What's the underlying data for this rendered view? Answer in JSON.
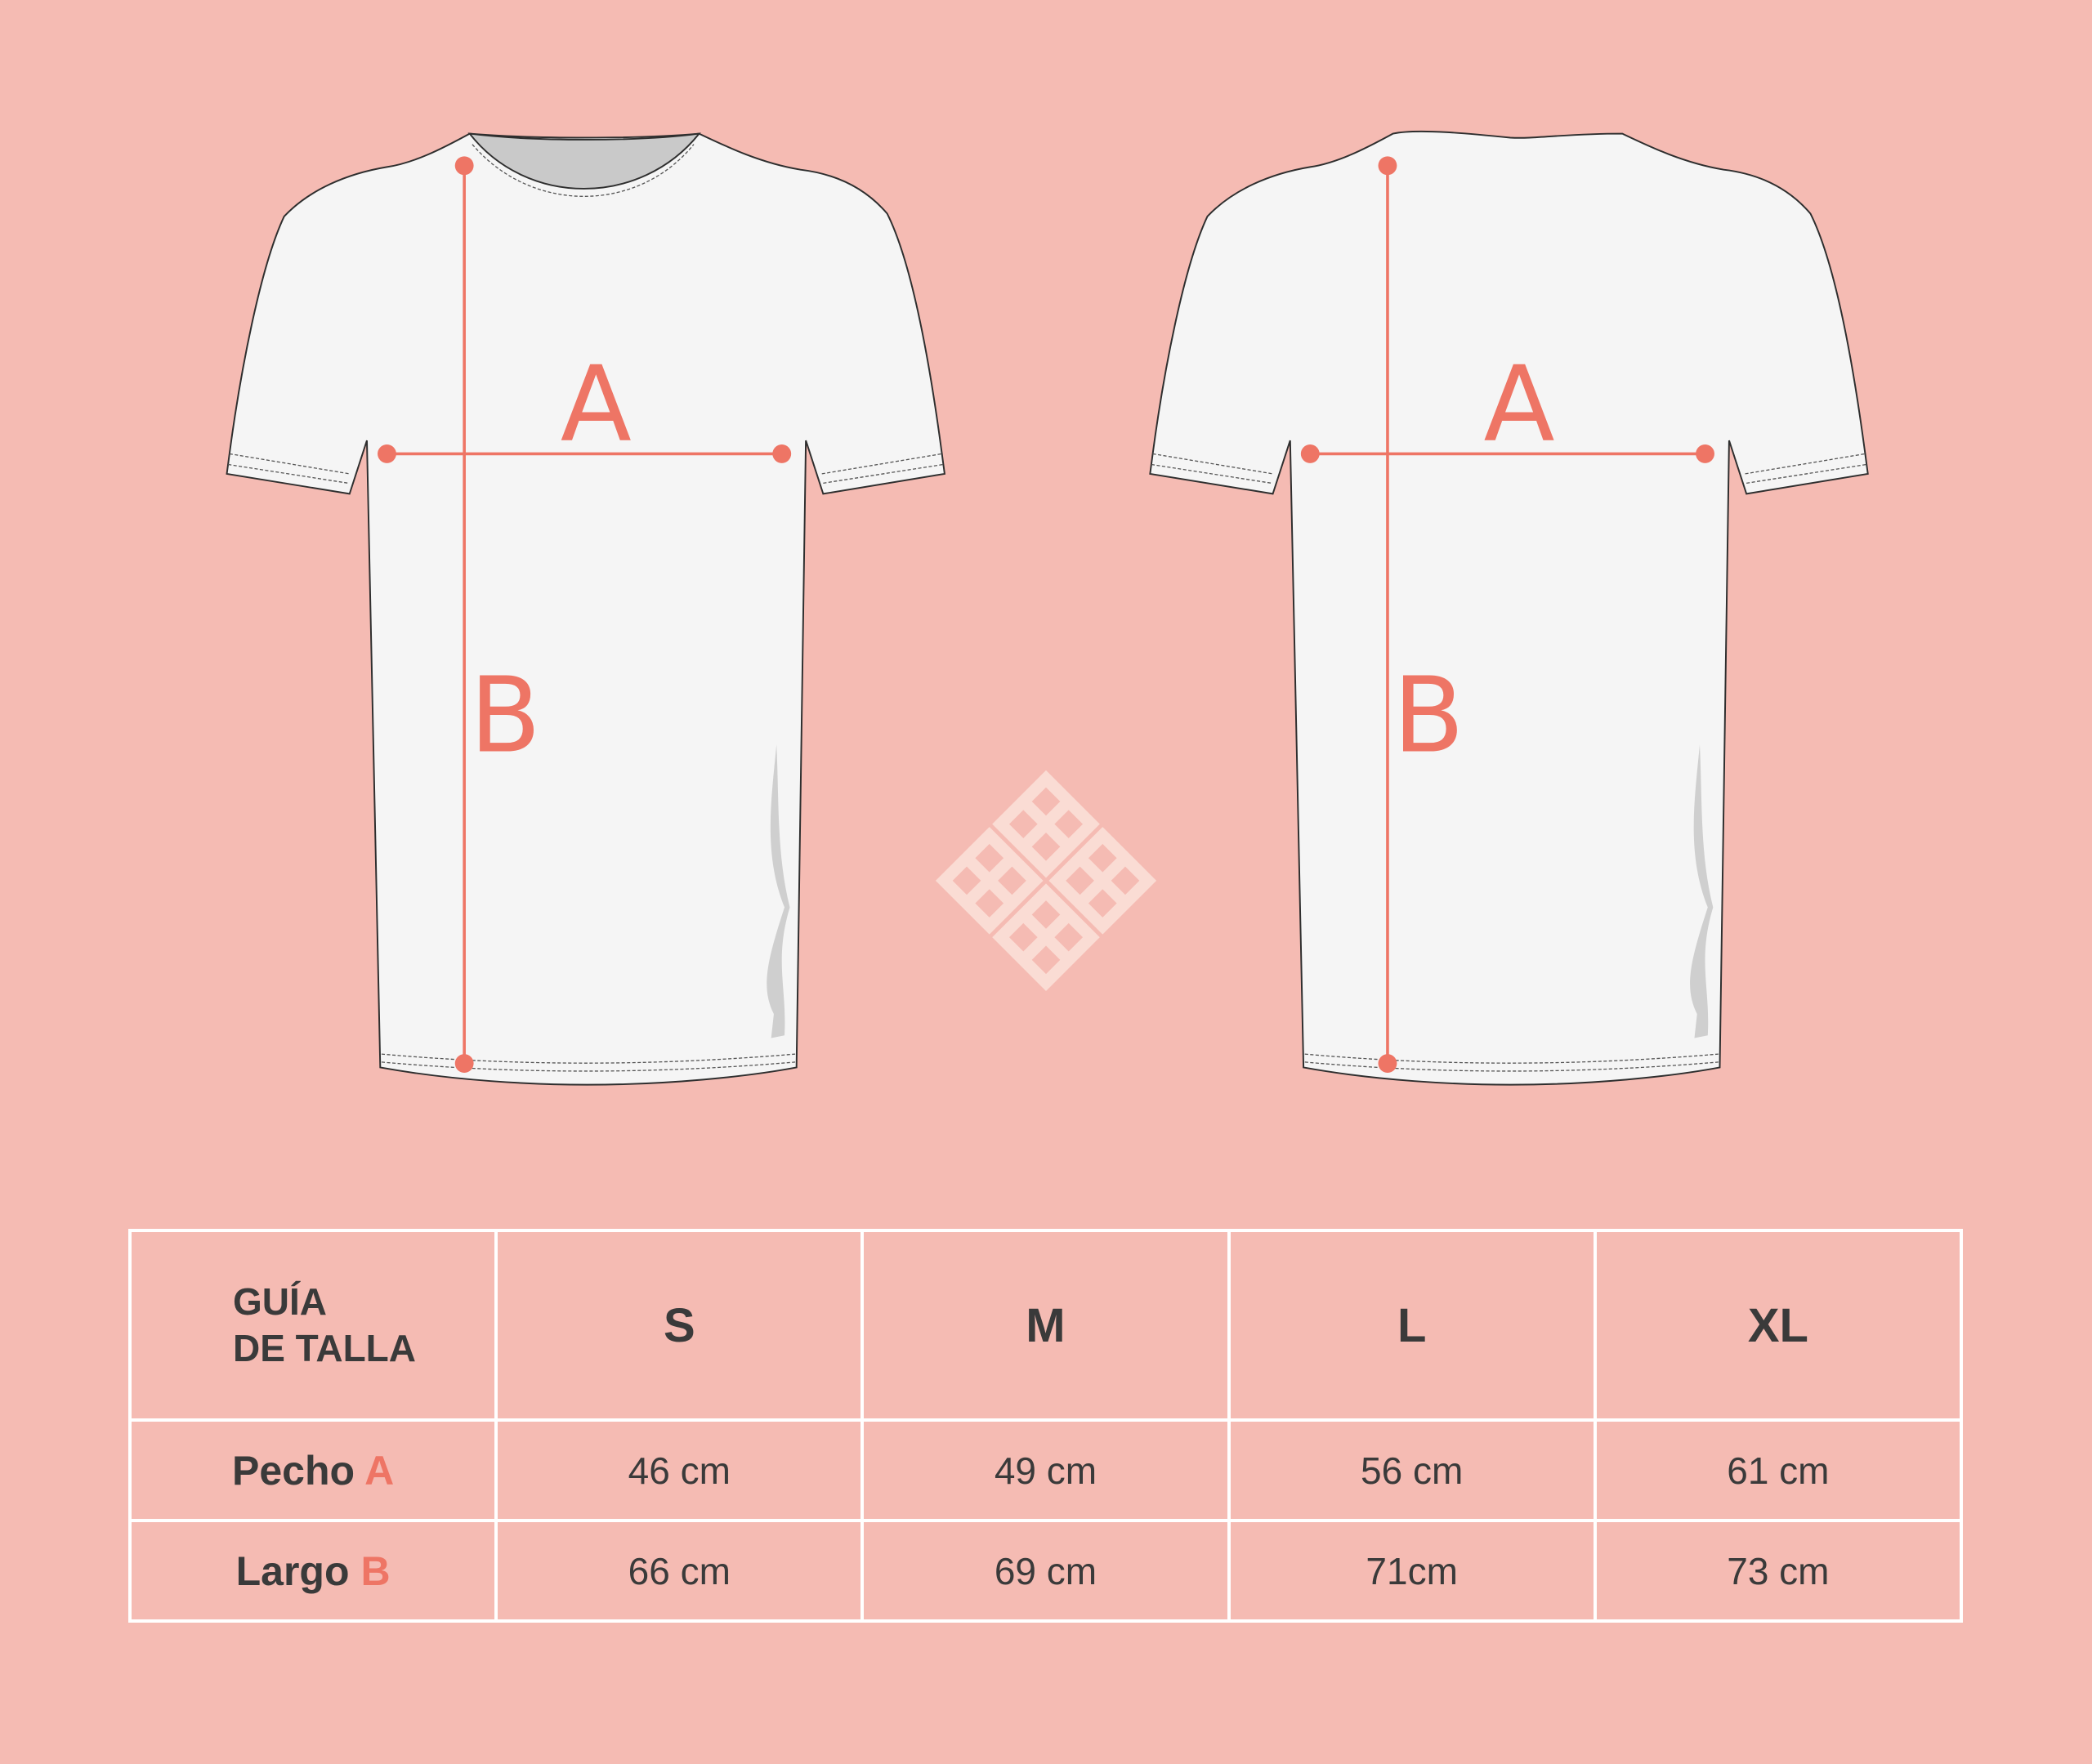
{
  "diagram": {
    "front_labels": {
      "width": "A",
      "length": "B"
    },
    "back_labels": {
      "width": "A",
      "length": "B"
    },
    "accent_color": "#ee7565",
    "background_color": "#f5bbb3",
    "logo": "geometric-diamond-logo"
  },
  "table": {
    "header_line1": "GUÍA",
    "header_line2": "DE TALLA",
    "sizes": [
      "S",
      "M",
      "L",
      "XL"
    ],
    "rows": [
      {
        "label": "Pecho",
        "marker": "A",
        "values": [
          "46 cm",
          "49 cm",
          "56 cm",
          "61 cm"
        ]
      },
      {
        "label": "Largo",
        "marker": "B",
        "values": [
          "66 cm",
          "69 cm",
          "71cm",
          "73 cm"
        ]
      }
    ]
  }
}
